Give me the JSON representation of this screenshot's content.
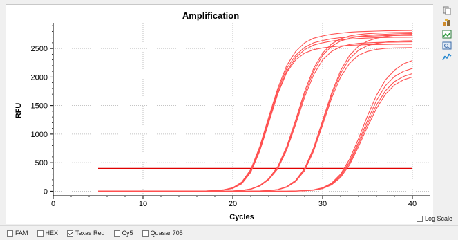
{
  "colors": {
    "curve": "#ff5050",
    "threshold": "#e00000",
    "grid": "#b0b0b0",
    "axis": "#000000"
  },
  "toolbar": {
    "icons": [
      "copy-icon",
      "export-icon",
      "image-icon",
      "zoom-icon",
      "chart-settings-icon"
    ]
  },
  "log_scale": {
    "label": "Log Scale",
    "checked": false
  },
  "fluorophores": [
    {
      "label": "FAM",
      "checked": false
    },
    {
      "label": "HEX",
      "checked": false
    },
    {
      "label": "Texas Red",
      "checked": true
    },
    {
      "label": "Cy5",
      "checked": false
    },
    {
      "label": "Quasar 705",
      "checked": false
    }
  ],
  "chart_data": {
    "type": "line",
    "title": "Amplification",
    "xlabel": "Cycles",
    "ylabel": "RFU",
    "xlim": [
      0,
      42
    ],
    "ylim": [
      -80,
      2950
    ],
    "x_ticks": [
      0,
      10,
      20,
      30,
      40
    ],
    "y_ticks": [
      0,
      500,
      1000,
      1500,
      2000,
      2500
    ],
    "grid": true,
    "threshold": {
      "value": 400,
      "x_start": 5,
      "x_end": 40
    },
    "x": [
      1,
      2,
      3,
      4,
      5,
      6,
      7,
      8,
      9,
      10,
      11,
      12,
      13,
      14,
      15,
      16,
      17,
      18,
      19,
      20,
      21,
      22,
      23,
      24,
      25,
      26,
      27,
      28,
      29,
      30,
      31,
      32,
      33,
      34,
      35,
      36,
      37,
      38,
      39,
      40
    ],
    "series": [
      {
        "values": [
          0,
          0,
          0,
          0,
          0,
          0,
          0,
          0,
          0,
          0,
          0,
          0,
          0,
          0,
          0,
          0,
          5,
          10,
          25,
          60,
          160,
          380,
          780,
          1300,
          1800,
          2200,
          2450,
          2600,
          2680,
          2720,
          2750,
          2770,
          2785,
          2795,
          2800,
          2805,
          2810,
          2812,
          2814,
          2815
        ]
      },
      {
        "values": [
          0,
          0,
          0,
          0,
          0,
          0,
          0,
          0,
          0,
          0,
          0,
          0,
          0,
          0,
          0,
          0,
          5,
          10,
          25,
          60,
          150,
          360,
          750,
          1260,
          1760,
          2150,
          2380,
          2520,
          2600,
          2640,
          2670,
          2690,
          2700,
          2710,
          2715,
          2720,
          2724,
          2727,
          2729,
          2730
        ]
      },
      {
        "values": [
          0,
          0,
          0,
          0,
          0,
          0,
          0,
          0,
          0,
          0,
          0,
          0,
          0,
          0,
          0,
          0,
          4,
          9,
          22,
          55,
          140,
          340,
          720,
          1220,
          1720,
          2100,
          2340,
          2480,
          2560,
          2600,
          2630,
          2650,
          2665,
          2675,
          2682,
          2688,
          2692,
          2695,
          2697,
          2698
        ]
      },
      {
        "values": [
          0,
          0,
          0,
          0,
          0,
          0,
          0,
          0,
          0,
          0,
          0,
          0,
          0,
          0,
          0,
          0,
          4,
          9,
          20,
          50,
          130,
          330,
          700,
          1200,
          1700,
          2080,
          2300,
          2420,
          2480,
          2510,
          2530,
          2545,
          2555,
          2562,
          2567,
          2570,
          2572,
          2574,
          2575,
          2575
        ]
      },
      {
        "values": [
          0,
          0,
          0,
          0,
          0,
          0,
          0,
          0,
          0,
          0,
          0,
          0,
          0,
          0,
          0,
          0,
          0,
          0,
          0,
          5,
          15,
          40,
          100,
          220,
          430,
          780,
          1250,
          1750,
          2150,
          2420,
          2580,
          2670,
          2720,
          2745,
          2760,
          2770,
          2775,
          2779,
          2782,
          2784
        ]
      },
      {
        "values": [
          0,
          0,
          0,
          0,
          0,
          0,
          0,
          0,
          0,
          0,
          0,
          0,
          0,
          0,
          0,
          0,
          0,
          0,
          0,
          5,
          14,
          38,
          95,
          210,
          410,
          750,
          1210,
          1700,
          2100,
          2380,
          2540,
          2630,
          2680,
          2710,
          2730,
          2742,
          2750,
          2756,
          2760,
          2762
        ]
      },
      {
        "values": [
          0,
          0,
          0,
          0,
          0,
          0,
          0,
          0,
          0,
          0,
          0,
          0,
          0,
          0,
          0,
          0,
          0,
          0,
          0,
          4,
          12,
          34,
          90,
          200,
          390,
          720,
          1170,
          1650,
          2040,
          2300,
          2450,
          2530,
          2570,
          2590,
          2600,
          2606,
          2610,
          2612,
          2614,
          2615
        ]
      },
      {
        "values": [
          0,
          0,
          0,
          0,
          0,
          0,
          0,
          0,
          0,
          0,
          0,
          0,
          0,
          0,
          0,
          0,
          0,
          0,
          0,
          0,
          0,
          0,
          5,
          12,
          30,
          80,
          190,
          400,
          760,
          1240,
          1720,
          2110,
          2380,
          2540,
          2630,
          2680,
          2710,
          2730,
          2742,
          2750
        ]
      },
      {
        "values": [
          0,
          0,
          0,
          0,
          0,
          0,
          0,
          0,
          0,
          0,
          0,
          0,
          0,
          0,
          0,
          0,
          0,
          0,
          0,
          0,
          0,
          0,
          5,
          11,
          28,
          75,
          180,
          380,
          730,
          1200,
          1680,
          2060,
          2320,
          2470,
          2550,
          2590,
          2612,
          2625,
          2632,
          2636
        ]
      },
      {
        "values": [
          0,
          0,
          0,
          0,
          0,
          0,
          0,
          0,
          0,
          0,
          0,
          0,
          0,
          0,
          0,
          0,
          0,
          0,
          0,
          0,
          0,
          0,
          4,
          10,
          26,
          70,
          170,
          360,
          700,
          1160,
          1630,
          2000,
          2240,
          2380,
          2450,
          2485,
          2502,
          2510,
          2514,
          2516
        ]
      },
      {
        "values": [
          0,
          0,
          0,
          0,
          0,
          0,
          0,
          0,
          0,
          0,
          0,
          0,
          0,
          0,
          0,
          0,
          0,
          0,
          0,
          0,
          0,
          0,
          0,
          0,
          0,
          0,
          4,
          10,
          25,
          60,
          140,
          300,
          560,
          920,
          1320,
          1680,
          1950,
          2120,
          2230,
          2290
        ]
      },
      {
        "values": [
          0,
          0,
          0,
          0,
          0,
          0,
          0,
          0,
          0,
          0,
          0,
          0,
          0,
          0,
          0,
          0,
          0,
          0,
          0,
          0,
          0,
          0,
          0,
          0,
          0,
          0,
          4,
          9,
          22,
          55,
          130,
          280,
          520,
          860,
          1240,
          1590,
          1850,
          2010,
          2100,
          2150
        ]
      },
      {
        "values": [
          0,
          0,
          0,
          0,
          0,
          0,
          0,
          0,
          0,
          0,
          0,
          0,
          0,
          0,
          0,
          0,
          0,
          0,
          0,
          0,
          0,
          0,
          0,
          0,
          0,
          0,
          3,
          8,
          20,
          50,
          120,
          260,
          490,
          820,
          1180,
          1510,
          1760,
          1920,
          2010,
          2060
        ]
      },
      {
        "values": [
          0,
          0,
          0,
          0,
          0,
          0,
          0,
          0,
          0,
          0,
          0,
          0,
          0,
          0,
          0,
          0,
          0,
          0,
          0,
          0,
          0,
          0,
          0,
          0,
          0,
          0,
          3,
          8,
          18,
          46,
          110,
          240,
          460,
          780,
          1130,
          1450,
          1700,
          1860,
          1950,
          2000
        ]
      }
    ]
  }
}
